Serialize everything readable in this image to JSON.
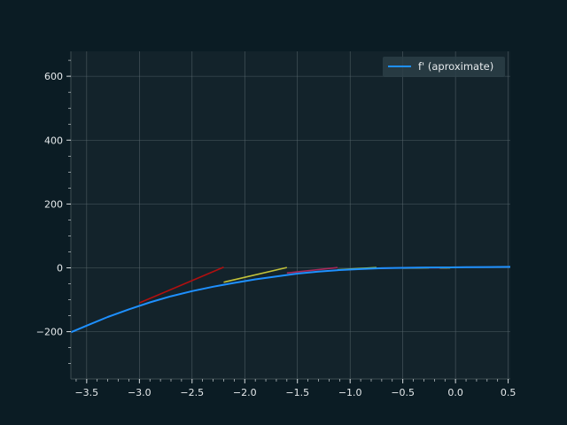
{
  "chart_data": {
    "type": "line",
    "title": "",
    "xlabel": "",
    "ylabel": "",
    "xlim": [
      -3.65,
      0.52
    ],
    "ylim": [
      -348,
      678
    ],
    "x_ticks": [
      -3.5,
      -3.0,
      -2.5,
      -2.0,
      -1.5,
      -1.0,
      -0.5,
      0.0,
      0.5
    ],
    "x_tick_labels": [
      "−3.5",
      "−3.0",
      "−2.5",
      "−2.0",
      "−1.5",
      "−1.0",
      "−0.5",
      "0.0",
      "0.5"
    ],
    "x_minor_step": 0.1,
    "y_ticks": [
      -200,
      0,
      200,
      400,
      600
    ],
    "y_tick_labels": [
      "−200",
      "0",
      "200",
      "400",
      "600"
    ],
    "y_minor_step": 50,
    "grid": true,
    "legend_position": "top-right",
    "series": [
      {
        "name": "f' (aproximate)",
        "color": "#1e90ff",
        "x": [
          -3.65,
          -3.5,
          -3.3,
          -3.1,
          -2.9,
          -2.7,
          -2.5,
          -2.3,
          -2.1,
          -1.9,
          -1.7,
          -1.5,
          -1.3,
          -1.1,
          -0.9,
          -0.7,
          -0.5,
          -0.3,
          -0.1,
          0.1,
          0.3,
          0.52
        ],
        "y": [
          -202,
          -181,
          -154,
          -130,
          -108,
          -89,
          -73,
          -59,
          -47,
          -36,
          -27,
          -18,
          -12,
          -7,
          -4,
          -1,
          0,
          1,
          1.5,
          2,
          2.5,
          3
        ]
      }
    ],
    "tangents": [
      {
        "color": "#b01010",
        "x": [
          -3.0,
          -2.2
        ],
        "y": [
          -110,
          2
        ]
      },
      {
        "color": "#c2c23a",
        "x": [
          -2.2,
          -1.6
        ],
        "y": [
          -45,
          1
        ]
      },
      {
        "color": "#a8285a",
        "x": [
          -1.6,
          -1.12
        ],
        "y": [
          -16,
          1
        ]
      },
      {
        "color": "#9fd04a",
        "x": [
          -1.12,
          -0.75
        ],
        "y": [
          -6,
          1
        ]
      },
      {
        "color": "#a8285a",
        "x": [
          -0.75,
          -0.5
        ],
        "y": [
          -2,
          0
        ]
      },
      {
        "color": "#c8c24a",
        "x": [
          -0.5,
          -0.25
        ],
        "y": [
          -1,
          0
        ]
      },
      {
        "color": "#a8285a",
        "x": [
          -0.25,
          -0.08
        ],
        "y": [
          0,
          0
        ]
      },
      {
        "color": "#c8c24a",
        "x": [
          -0.15,
          -0.05
        ],
        "y": [
          0,
          0
        ]
      }
    ]
  }
}
